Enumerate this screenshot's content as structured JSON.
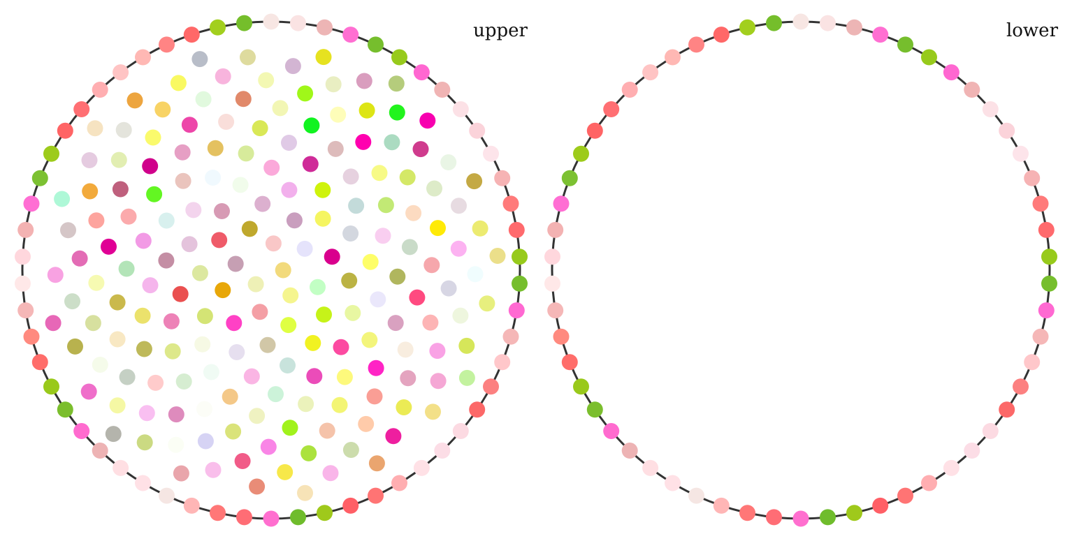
{
  "panels": [
    {
      "title": "upper",
      "boundary_colors": [
        "#F7E6E3",
        "#FAE3E3",
        "#EDB5B5",
        "#FF6FD2",
        "#76BE2D",
        "#97CA1C",
        "#FF67D1",
        "#F0B4B4",
        "#FCE1E6",
        "#FBD3DA",
        "#FDE4EA",
        "#F6B3B4",
        "#FF7A7A",
        "#FF6A6D",
        "#97CA1C",
        "#76BE2D",
        "#FF69D2",
        "#F5B7B7",
        "#FFC7CA",
        "#FC8080",
        "#FC6868",
        "#FCDAE2",
        "#FCDDE6",
        "#FFE1E6",
        "#FFAEB1",
        "#FF7474",
        "#FF5F66",
        "#9FC91B",
        "#6FBC2C",
        "#FF6FCF",
        "#FF6D75",
        "#FF7777",
        "#FFB6B6",
        "#F5E6E3",
        "#FFE1E6",
        "#FFDFE3",
        "#EDB3B4",
        "#FF6BCF",
        "#7BBE2D",
        "#99C91B",
        "#FF6D6A",
        "#FF8A7F",
        "#F5B7B7",
        "#FFE8E8",
        "#FFD7DD",
        "#F3B2B2",
        "#FF6ED3",
        "#7CC132",
        "#9DCB1B",
        "#FF6465",
        "#FF6F73",
        "#FFAEB1",
        "#FFC4C4",
        "#FFB8B4",
        "#FF8484",
        "#FF6868",
        "#A2CF1E",
        "#75BE2B"
      ],
      "interior_colors": [
        "#F2DA7C",
        "#EEF0B6",
        "#F9C7C7",
        "#F5F58E",
        "#C69FB3",
        "#E5E3FB",
        "#F49FA5",
        "#BFA82D",
        "#C2FFC4",
        "#E8A709",
        "#C99EBE",
        "#DFFF43",
        "#EF5B69",
        "#D9008D",
        "#FF41C5",
        "#DCB0CF",
        "#C6F319",
        "#DCE8A0",
        "#F5F561",
        "#D1C7A7",
        "#D79AB4",
        "#BBB344",
        "#D4E475",
        "#F2B0EC",
        "#F1F222",
        "#E4C3DC",
        "#D3D7DF",
        "#E6DFEF",
        "#F1FCEB",
        "#E8F7A2",
        "#EA5050",
        "#CFF30B",
        "#C8E3DC",
        "#F3D4ED",
        "#FEFE68",
        "#F6F9E4",
        "#FBA9DA",
        "#FC4AA1",
        "#C48EA4",
        "#C3DBDA",
        "#FAB5E4",
        "#F0F9FE",
        "#EAE7FB",
        "#ED82B7",
        "#CF2B98",
        "#EB4CB9",
        "#D8F0EE",
        "#F9CEF0",
        "#F0FBF4",
        "#D7EB9B",
        "#F3F57B",
        "#F5B5EC",
        "#E6D1DF",
        "#CCF3D9",
        "#EAC4BD",
        "#B0B65E",
        "#DDE88A",
        "#E0CAE6",
        "#FDF97C",
        "#F29AE5",
        "#C2E975",
        "#F4C888",
        "#E4C160",
        "#D9A1C0",
        "#EBE26C",
        "#DDBBBB",
        "#EBF2BB",
        "#63F622",
        "#C9DBC8",
        "#D6EDD1",
        "#D9E857",
        "#FF24C5",
        "#B3E4B8",
        "#F7FA86",
        "#EFF2C1",
        "#E69FC4",
        "#FF4A80",
        "#BEB95A",
        "#11F320",
        "#F3F574",
        "#FBAAAC",
        "#FCDBC1",
        "#FCFDF7",
        "#F9DEDA",
        "#F8EDDF",
        "#CAB94C",
        "#FF00AF",
        "#A1F21C",
        "#D0008B",
        "#F6A7AC",
        "#FFCBCB",
        "#F2F6B4",
        "#FA9E95",
        "#E00095",
        "#D4E867",
        "#DAE37A",
        "#ED46A9",
        "#FDB4B5",
        "#F8E8C3",
        "#FEFDB9",
        "#F5C3AA",
        "#BF607D",
        "#FFEA07",
        "#DE8BBD",
        "#E1896A",
        "#E4A4BF",
        "#F6FAB2",
        "#ABDBC1",
        "#F985E6",
        "#FAFA6C",
        "#D7D6E4",
        "#C5D0C4",
        "#A0F719",
        "#FFCBAA",
        "#FDA49E",
        "#DDEBC8",
        "#D6D3F4",
        "#E1F9DE",
        "#F9A2E5",
        "#D7E09F",
        "#DDE515",
        "#ABE23E",
        "#E2EEB2",
        "#FCB2F1",
        "#F9BFF1",
        "#F3F8B3",
        "#EBEB55",
        "#E36CB5",
        "#CF3B8D",
        "#F15B88",
        "#F8D365",
        "#EEF6DE",
        "#F5FBEA",
        "#E9EEC2",
        "#CCDCAC",
        "#F2AA3C",
        "#E7DBE1",
        "#FBFEF5",
        "#F8B4DD",
        "#F5A7D5",
        "#CCDEC8",
        "#22F41D",
        "#F7E84A",
        "#E4E4DC",
        "#F0FDFE",
        "#F5F8A4",
        "#D3B5D3",
        "#EE1F9F",
        "#D5C6C7",
        "#E9F5E5",
        "#F9BEEB",
        "#F9F962",
        "#D6E65A",
        "#B8B24E",
        "#D99DBE",
        "#F9B5E9",
        "#E5CBE0",
        "#ECEB71",
        "#CBDA82",
        "#DEDB9E",
        "#F3E088",
        "#F8A2E2",
        "#F700AF",
        "#E98C77",
        "#EDA53F",
        "#E7EF7E",
        "#EF6ECA",
        "#E6E220",
        "#EAA56F",
        "#AEF8D7",
        "#C4A944",
        "#E9A5AB",
        "#B8BDC8",
        "#C3F29F",
        "#E767B7",
        "#B5CC7C",
        "#F7E3B7",
        "#F6E3C1",
        "#EBDF8A",
        "#B4B4AC"
      ]
    },
    {
      "title": "lower",
      "boundary_colors": [
        "#F7E6E3",
        "#FAE3E3",
        "#EDB5B5",
        "#FF6FD2",
        "#76BE2D",
        "#97CA1C",
        "#FF67D1",
        "#F0B4B4",
        "#FCE1E6",
        "#FBD3DA",
        "#FDE4EA",
        "#F6B3B4",
        "#FF7A7A",
        "#FF6A6D",
        "#97CA1C",
        "#76BE2D",
        "#FF69D2",
        "#F5B7B7",
        "#FFC7CA",
        "#FC8080",
        "#FC6868",
        "#FCDAE2",
        "#FCDDE6",
        "#FFE1E6",
        "#FFAEB1",
        "#FF7474",
        "#FF5F66",
        "#9FC91B",
        "#6FBC2C",
        "#FF6FCF",
        "#FF6D75",
        "#FF7777",
        "#FFB6B6",
        "#F5E6E3",
        "#FFE1E6",
        "#FFDFE3",
        "#EDB3B4",
        "#FF6BCF",
        "#7BBE2D",
        "#99C91B",
        "#FF6D6A",
        "#FF8A7F",
        "#F5B7B7",
        "#FFE8E8",
        "#FFD7DD",
        "#F3B2B2",
        "#FF6ED3",
        "#7CC132",
        "#9DCB1B",
        "#FF6465",
        "#FF6F73",
        "#FFAEB1",
        "#FFC4C4",
        "#FFB8B4",
        "#FF8484",
        "#FF6868",
        "#A2CF1E",
        "#75BE2B"
      ],
      "interior_colors": []
    }
  ]
}
